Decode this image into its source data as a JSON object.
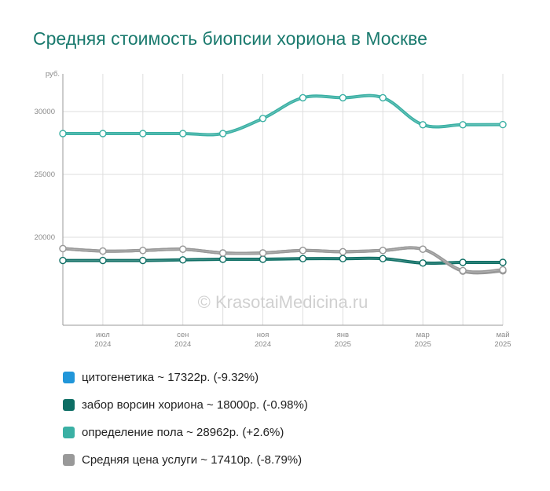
{
  "chart_data": {
    "type": "line",
    "title": "Средняя стоимость биопсии хориона в Москве",
    "ylabel": "руб.",
    "ylim": [
      13000,
      33000
    ],
    "yticks": [
      20000,
      25000,
      30000
    ],
    "xlim": [
      0,
      11
    ],
    "x_ticks": [
      {
        "x": 1,
        "month": "июл",
        "year": "2024"
      },
      {
        "x": 3,
        "month": "сен",
        "year": "2024"
      },
      {
        "x": 5,
        "month": "ноя",
        "year": "2024"
      },
      {
        "x": 7,
        "month": "янв",
        "year": "2025"
      },
      {
        "x": 9,
        "month": "мар",
        "year": "2025"
      },
      {
        "x": 11,
        "month": "май",
        "year": "2025"
      }
    ],
    "grid": true,
    "legend_position": "bottom-left",
    "watermark": "© KrasotaiMedicina.ru",
    "series": [
      {
        "name": "цитогенетика",
        "legend": "цитогенетика ~ 17322р. (-9.32%)",
        "color": "#2196d9",
        "draw_color": "#959595",
        "values": [
          19100,
          18900,
          18950,
          19050,
          18750,
          18750,
          18950,
          18850,
          18950,
          19050,
          17300,
          17322
        ]
      },
      {
        "name": "забор ворсин хориона",
        "legend": "забор ворсин хориона ~ 18000р. (-0.98%)",
        "color": "#0d6e64",
        "draw_color": "#0d6e64",
        "values": [
          18150,
          18150,
          18150,
          18200,
          18250,
          18250,
          18300,
          18300,
          18300,
          17950,
          18000,
          18000
        ]
      },
      {
        "name": "определение пола",
        "legend": "определение пола ~ 28962р. (+2.6%)",
        "color": "#3ab0a4",
        "draw_color": "#3ab0a4",
        "values": [
          28250,
          28250,
          28250,
          28250,
          28250,
          29450,
          31100,
          31100,
          31100,
          28950,
          28950,
          28962
        ]
      },
      {
        "name": "Средняя цена услуги",
        "legend": "Средняя цена услуги ~ 17410р. (-8.79%)",
        "color": "#999999",
        "draw_color": "#999999",
        "values": [
          19100,
          18900,
          18950,
          19050,
          18750,
          18750,
          18950,
          18850,
          18950,
          19050,
          17350,
          17410
        ]
      }
    ]
  }
}
